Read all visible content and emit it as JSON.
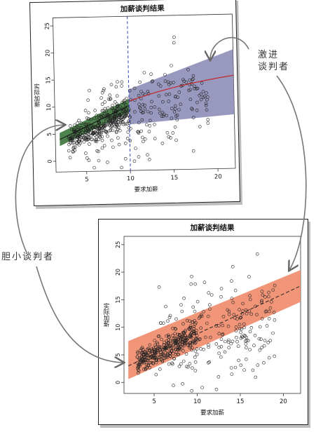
{
  "chart_data": [
    {
      "type": "scatter",
      "title": "加薪谈判结果",
      "xlabel": "要求加薪",
      "ylabel": "实际加薪",
      "xlim": [
        1.5,
        22
      ],
      "ylim": [
        -2,
        26.5
      ],
      "xticks": [
        "5",
        "10",
        "15",
        "20"
      ],
      "yticks": [
        "0",
        "5",
        "10",
        "15",
        "20",
        "25"
      ],
      "vline_x": 10,
      "fit_lower": {
        "x": [
          2,
          10
        ],
        "y": [
          4.0,
          10.0
        ],
        "band_halfwidth": 1.2,
        "band_color": "#2e6b2e"
      },
      "fit_upper": {
        "x": [
          10,
          22
        ],
        "y": [
          10.8,
          15.2
        ],
        "band_low": [
          6.5,
          8.0
        ],
        "band_high": [
          13.0,
          20.0
        ],
        "band_color": "#7f7fb0",
        "line_color": "#c81e1e"
      }
    },
    {
      "type": "scatter",
      "title": "加薪谈判结果",
      "xlabel": "要求加薪",
      "ylabel": "实际加薪",
      "xlim": [
        1.5,
        22
      ],
      "ylim": [
        -2,
        26.5
      ],
      "xticks": [
        "5",
        "10",
        "15",
        "20"
      ],
      "yticks": [
        "0",
        "5",
        "10",
        "15",
        "20",
        "25"
      ],
      "fit": {
        "x": [
          2,
          22
        ],
        "y": [
          3.0,
          17.5
        ],
        "band_low": [
          0.6,
          14.6
        ],
        "band_high": [
          7.5,
          20.4
        ],
        "band_color": "#f08a6a"
      }
    }
  ],
  "annotations": {
    "bold": "激进\n谈判者",
    "timid": "胆小谈判者"
  }
}
